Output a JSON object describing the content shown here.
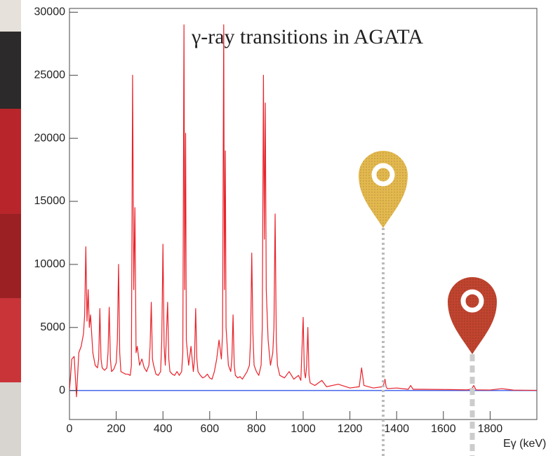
{
  "chart_data": {
    "type": "line",
    "title": "γ-ray transitions in AGATA",
    "x_label": "Eγ (keV)",
    "color": "#e8222a",
    "baseline_color": "#4466ee",
    "xlim": [
      0,
      2000
    ],
    "ylim": [
      -2300,
      30300
    ],
    "xticks": [
      0,
      200,
      400,
      600,
      800,
      1000,
      1200,
      1400,
      1600,
      1800
    ],
    "yticks": [
      0,
      5000,
      10000,
      15000,
      20000,
      25000,
      30000
    ],
    "grid": false,
    "x": [
      0,
      10,
      20,
      30,
      40,
      50,
      60,
      65,
      70,
      75,
      80,
      85,
      90,
      100,
      110,
      120,
      125,
      130,
      135,
      140,
      150,
      160,
      165,
      170,
      175,
      180,
      190,
      200,
      205,
      210,
      215,
      220,
      230,
      240,
      250,
      260,
      265,
      270,
      275,
      280,
      285,
      290,
      300,
      310,
      320,
      330,
      340,
      345,
      350,
      355,
      360,
      370,
      380,
      390,
      395,
      400,
      405,
      410,
      415,
      420,
      425,
      430,
      440,
      450,
      460,
      470,
      480,
      485,
      490,
      493,
      497,
      500,
      510,
      520,
      530,
      535,
      540,
      545,
      550,
      560,
      570,
      580,
      590,
      600,
      610,
      620,
      630,
      640,
      650,
      655,
      660,
      663,
      667,
      670,
      680,
      690,
      695,
      700,
      705,
      710,
      720,
      730,
      740,
      750,
      760,
      770,
      775,
      780,
      785,
      790,
      800,
      810,
      820,
      825,
      830,
      834,
      838,
      842,
      850,
      860,
      870,
      875,
      880,
      885,
      890,
      900,
      920,
      940,
      960,
      980,
      990,
      1000,
      1005,
      1010,
      1015,
      1020,
      1025,
      1030,
      1050,
      1080,
      1100,
      1150,
      1200,
      1240,
      1250,
      1260,
      1300,
      1340,
      1345,
      1350,
      1355,
      1360,
      1400,
      1450,
      1460,
      1470,
      1500,
      1600,
      1700,
      1720,
      1730,
      1740,
      1800,
      1850,
      1900,
      1950,
      2000
    ],
    "values": [
      0,
      2500,
      2700,
      -500,
      3000,
      3500,
      4500,
      6000,
      11400,
      5500,
      8000,
      5000,
      6000,
      3000,
      2000,
      1800,
      2500,
      6500,
      2500,
      1800,
      1600,
      1800,
      3000,
      6600,
      2500,
      1500,
      1700,
      2200,
      4000,
      10000,
      3000,
      1500,
      1400,
      1300,
      1300,
      1200,
      2000,
      25000,
      8000,
      14500,
      3000,
      3500,
      2000,
      2500,
      1800,
      1500,
      2000,
      3500,
      7000,
      2500,
      2000,
      1300,
      1200,
      1500,
      4000,
      11600,
      3500,
      2000,
      4500,
      7000,
      2500,
      1500,
      1300,
      1200,
      1500,
      1200,
      1500,
      3000,
      29000,
      8000,
      20400,
      4000,
      2000,
      3500,
      1500,
      2500,
      6500,
      2500,
      1500,
      1200,
      1000,
      1100,
      1300,
      1000,
      900,
      1500,
      2500,
      4000,
      2500,
      4500,
      29000,
      8000,
      19000,
      5000,
      2000,
      1500,
      2500,
      6000,
      2000,
      1200,
      1000,
      1100,
      900,
      1200,
      1500,
      2000,
      4000,
      10900,
      4500,
      2000,
      1500,
      1200,
      2000,
      5000,
      25000,
      12000,
      22800,
      8000,
      4000,
      2000,
      3000,
      5000,
      14000,
      4000,
      2000,
      1200,
      1000,
      1500,
      900,
      1200,
      800,
      5800,
      1500,
      1000,
      2000,
      5000,
      1200,
      600,
      400,
      800,
      300,
      500,
      200,
      300,
      1800,
      400,
      200,
      300,
      500,
      900,
      300,
      150,
      200,
      100,
      400,
      100,
      100,
      80,
      50,
      100,
      400,
      50,
      40,
      150,
      30,
      20,
      10
    ]
  }
}
